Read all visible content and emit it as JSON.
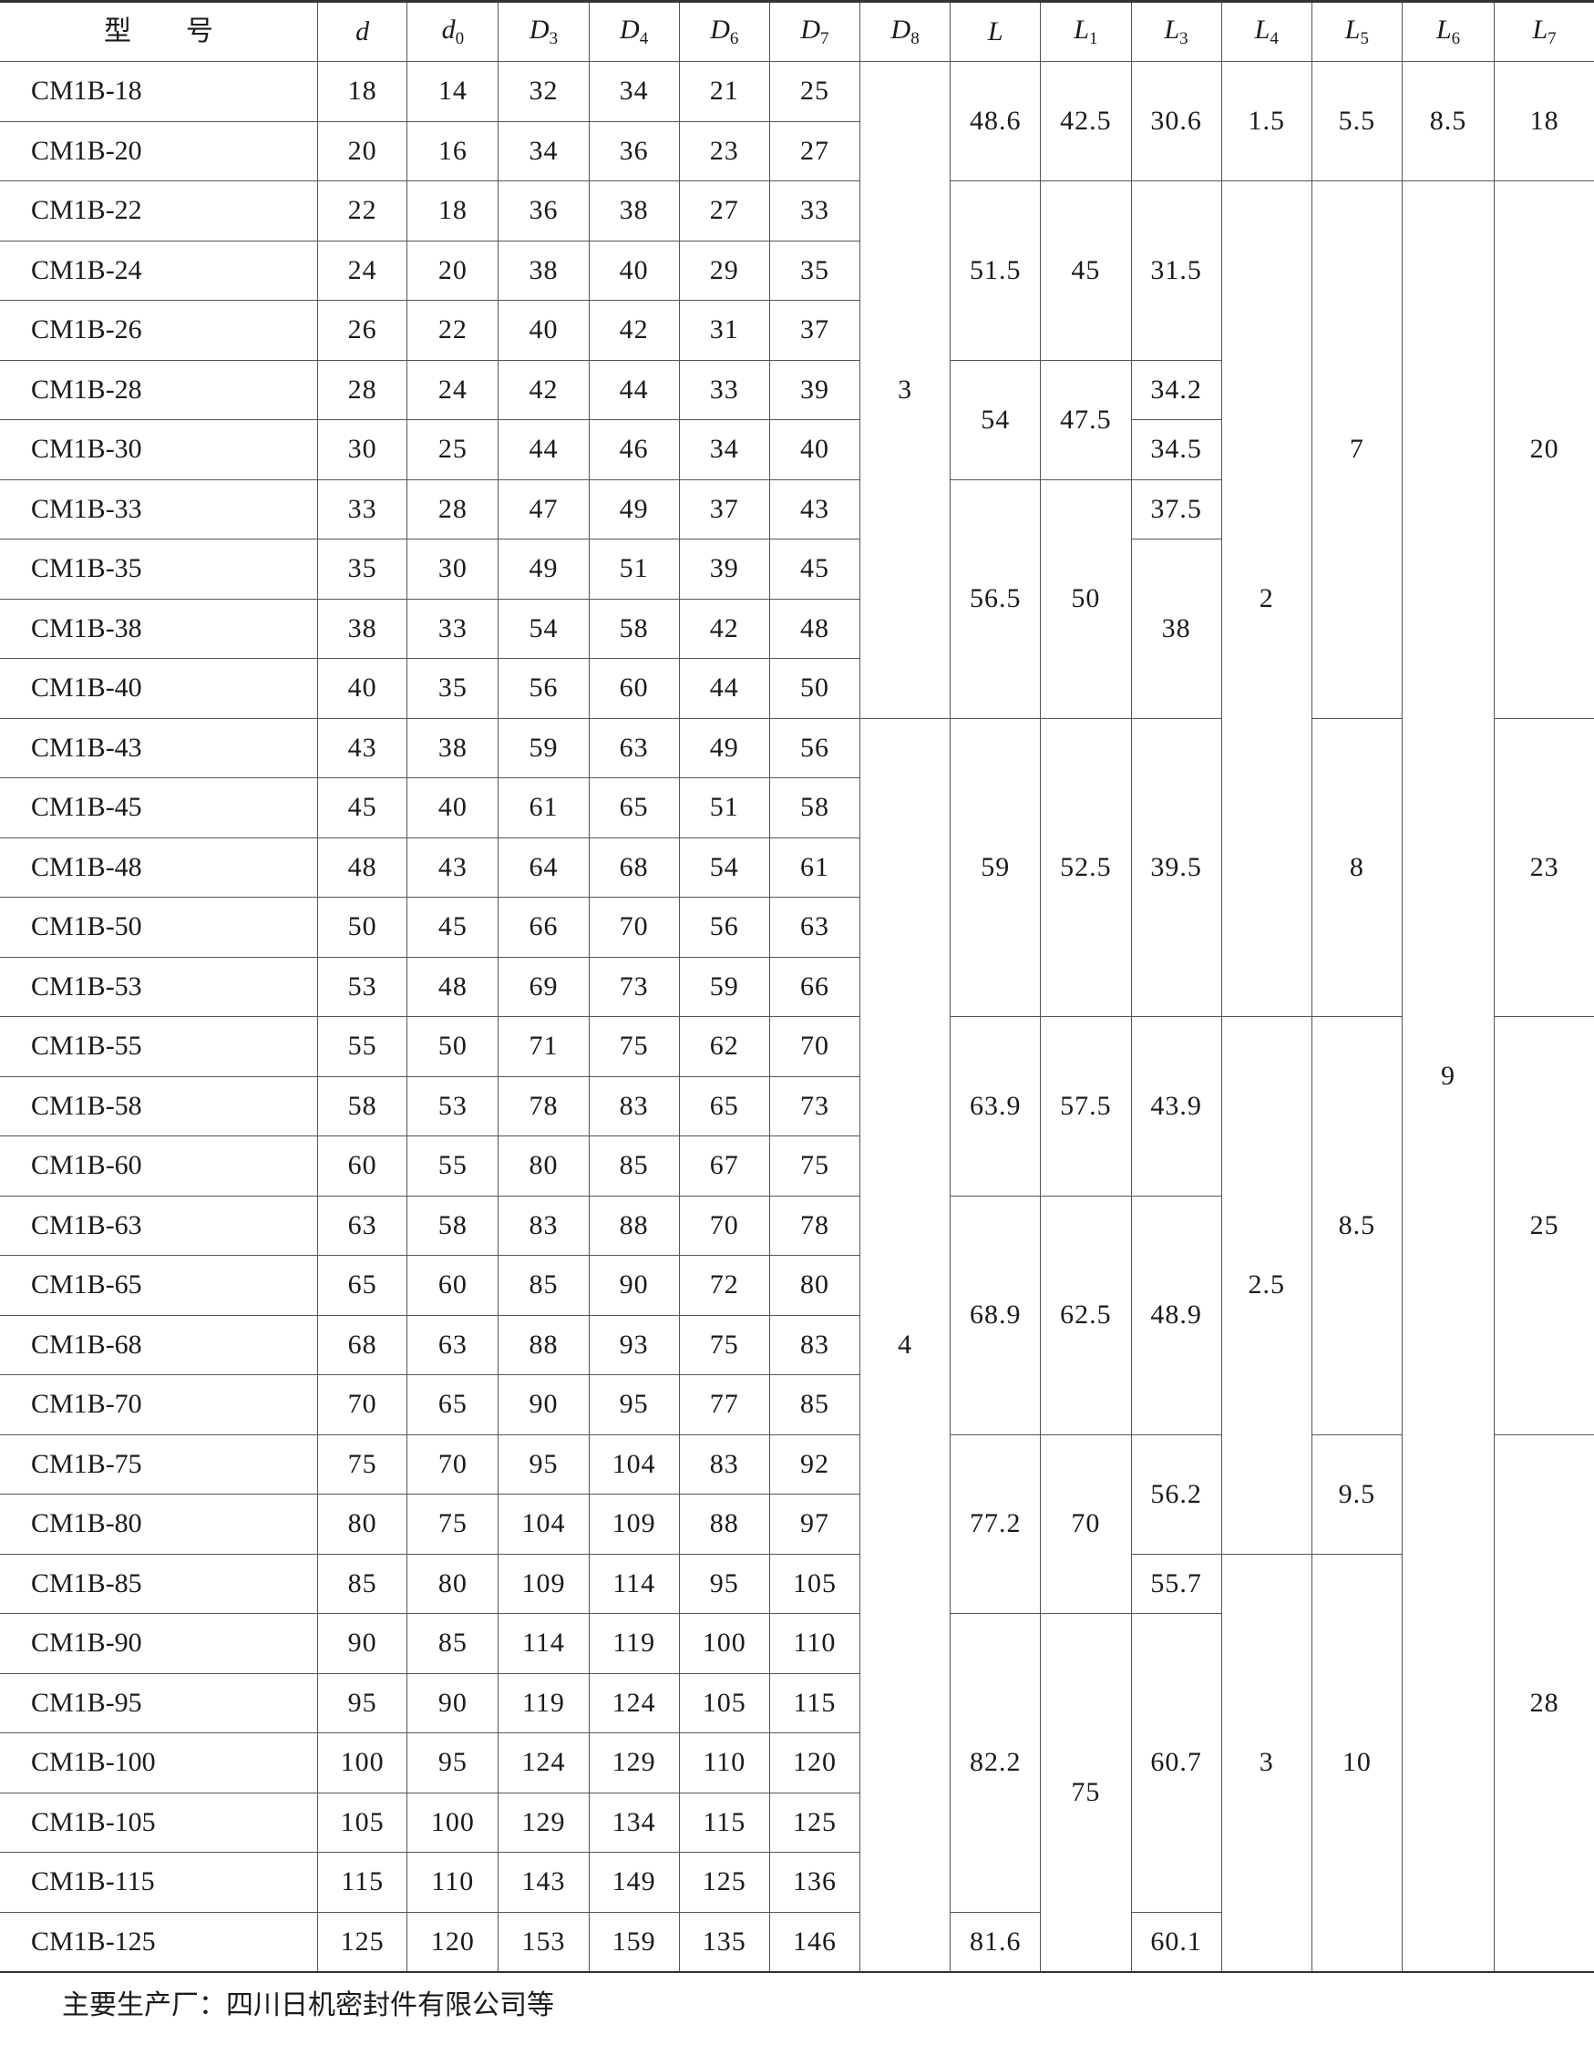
{
  "header": {
    "model_label": "型　　号",
    "columns": [
      {
        "sym": "d",
        "sub": ""
      },
      {
        "sym": "d",
        "sub": "0"
      },
      {
        "sym": "D",
        "sub": "3"
      },
      {
        "sym": "D",
        "sub": "4"
      },
      {
        "sym": "D",
        "sub": "6"
      },
      {
        "sym": "D",
        "sub": "7"
      },
      {
        "sym": "D",
        "sub": "8"
      },
      {
        "sym": "L",
        "sub": ""
      },
      {
        "sym": "L",
        "sub": "1"
      },
      {
        "sym": "L",
        "sub": "3"
      },
      {
        "sym": "L",
        "sub": "4"
      },
      {
        "sym": "L",
        "sub": "5"
      },
      {
        "sym": "L",
        "sub": "6"
      },
      {
        "sym": "L",
        "sub": "7"
      }
    ]
  },
  "rows": [
    [
      "CM1B-18",
      18,
      14,
      32,
      34,
      21,
      25
    ],
    [
      "CM1B-20",
      20,
      16,
      34,
      36,
      23,
      27
    ],
    [
      "CM1B-22",
      22,
      18,
      36,
      38,
      27,
      33
    ],
    [
      "CM1B-24",
      24,
      20,
      38,
      40,
      29,
      35
    ],
    [
      "CM1B-26",
      26,
      22,
      40,
      42,
      31,
      37
    ],
    [
      "CM1B-28",
      28,
      24,
      42,
      44,
      33,
      39
    ],
    [
      "CM1B-30",
      30,
      25,
      44,
      46,
      34,
      40
    ],
    [
      "CM1B-33",
      33,
      28,
      47,
      49,
      37,
      43
    ],
    [
      "CM1B-35",
      35,
      30,
      49,
      51,
      39,
      45
    ],
    [
      "CM1B-38",
      38,
      33,
      54,
      58,
      42,
      48
    ],
    [
      "CM1B-40",
      40,
      35,
      56,
      60,
      44,
      50
    ],
    [
      "CM1B-43",
      43,
      38,
      59,
      63,
      49,
      56
    ],
    [
      "CM1B-45",
      45,
      40,
      61,
      65,
      51,
      58
    ],
    [
      "CM1B-48",
      48,
      43,
      64,
      68,
      54,
      61
    ],
    [
      "CM1B-50",
      50,
      45,
      66,
      70,
      56,
      63
    ],
    [
      "CM1B-53",
      53,
      48,
      69,
      73,
      59,
      66
    ],
    [
      "CM1B-55",
      55,
      50,
      71,
      75,
      62,
      70
    ],
    [
      "CM1B-58",
      58,
      53,
      78,
      83,
      65,
      73
    ],
    [
      "CM1B-60",
      60,
      55,
      80,
      85,
      67,
      75
    ],
    [
      "CM1B-63",
      63,
      58,
      83,
      88,
      70,
      78
    ],
    [
      "CM1B-65",
      65,
      60,
      85,
      90,
      72,
      80
    ],
    [
      "CM1B-68",
      68,
      63,
      88,
      93,
      75,
      83
    ],
    [
      "CM1B-70",
      70,
      65,
      90,
      95,
      77,
      85
    ],
    [
      "CM1B-75",
      75,
      70,
      95,
      104,
      83,
      92
    ],
    [
      "CM1B-80",
      80,
      75,
      104,
      109,
      88,
      97
    ],
    [
      "CM1B-85",
      85,
      80,
      109,
      114,
      95,
      105
    ],
    [
      "CM1B-90",
      90,
      85,
      114,
      119,
      100,
      110
    ],
    [
      "CM1B-95",
      95,
      90,
      119,
      124,
      105,
      115
    ],
    [
      "CM1B-100",
      100,
      95,
      124,
      129,
      110,
      120
    ],
    [
      "CM1B-105",
      105,
      100,
      129,
      134,
      115,
      125
    ],
    [
      "CM1B-115",
      115,
      110,
      143,
      149,
      125,
      136
    ],
    [
      "CM1B-125",
      125,
      120,
      153,
      159,
      135,
      146
    ]
  ],
  "merged_columns": [
    {
      "key": "D8",
      "cells": [
        [
          "3",
          11
        ],
        [
          "4",
          21
        ]
      ]
    },
    {
      "key": "L",
      "cells": [
        [
          "48.6",
          2
        ],
        [
          "51.5",
          3
        ],
        [
          "54",
          2
        ],
        [
          "56.5",
          4
        ],
        [
          "59",
          5
        ],
        [
          "63.9",
          3
        ],
        [
          "68.9",
          4
        ],
        [
          "77.2",
          3
        ],
        [
          "82.2",
          5
        ],
        [
          "81.6",
          1
        ]
      ]
    },
    {
      "key": "L1",
      "cells": [
        [
          "42.5",
          2
        ],
        [
          "45",
          3
        ],
        [
          "47.5",
          2
        ],
        [
          "50",
          4
        ],
        [
          "52.5",
          5
        ],
        [
          "57.5",
          3
        ],
        [
          "62.5",
          4
        ],
        [
          "70",
          3
        ],
        [
          "75",
          6
        ]
      ]
    },
    {
      "key": "L3",
      "cells": [
        [
          "30.6",
          2
        ],
        [
          "31.5",
          3
        ],
        [
          "34.2",
          1
        ],
        [
          "34.5",
          1
        ],
        [
          "37.5",
          1
        ],
        [
          "38",
          3
        ],
        [
          "39.5",
          5
        ],
        [
          "43.9",
          3
        ],
        [
          "48.9",
          4
        ],
        [
          "56.2",
          2
        ],
        [
          "55.7",
          1
        ],
        [
          "60.7",
          5
        ],
        [
          "60.1",
          1
        ]
      ]
    },
    {
      "key": "L4",
      "cells": [
        [
          "1.5",
          2
        ],
        [
          "2",
          14
        ],
        [
          "2.5",
          9
        ],
        [
          "3",
          7
        ]
      ]
    },
    {
      "key": "L5",
      "cells": [
        [
          "5.5",
          2
        ],
        [
          "7",
          9
        ],
        [
          "8",
          5
        ],
        [
          "8.5",
          7
        ],
        [
          "9.5",
          2
        ],
        [
          "10",
          7
        ]
      ]
    },
    {
      "key": "L6",
      "cells": [
        [
          "8.5",
          2
        ],
        [
          "9",
          30
        ]
      ]
    },
    {
      "key": "L7",
      "cells": [
        [
          "18",
          2
        ],
        [
          "20",
          9
        ],
        [
          "23",
          5
        ],
        [
          "25",
          7
        ],
        [
          "28",
          9
        ]
      ]
    }
  ],
  "footer": "主要生产厂：四川日机密封件有限公司等"
}
